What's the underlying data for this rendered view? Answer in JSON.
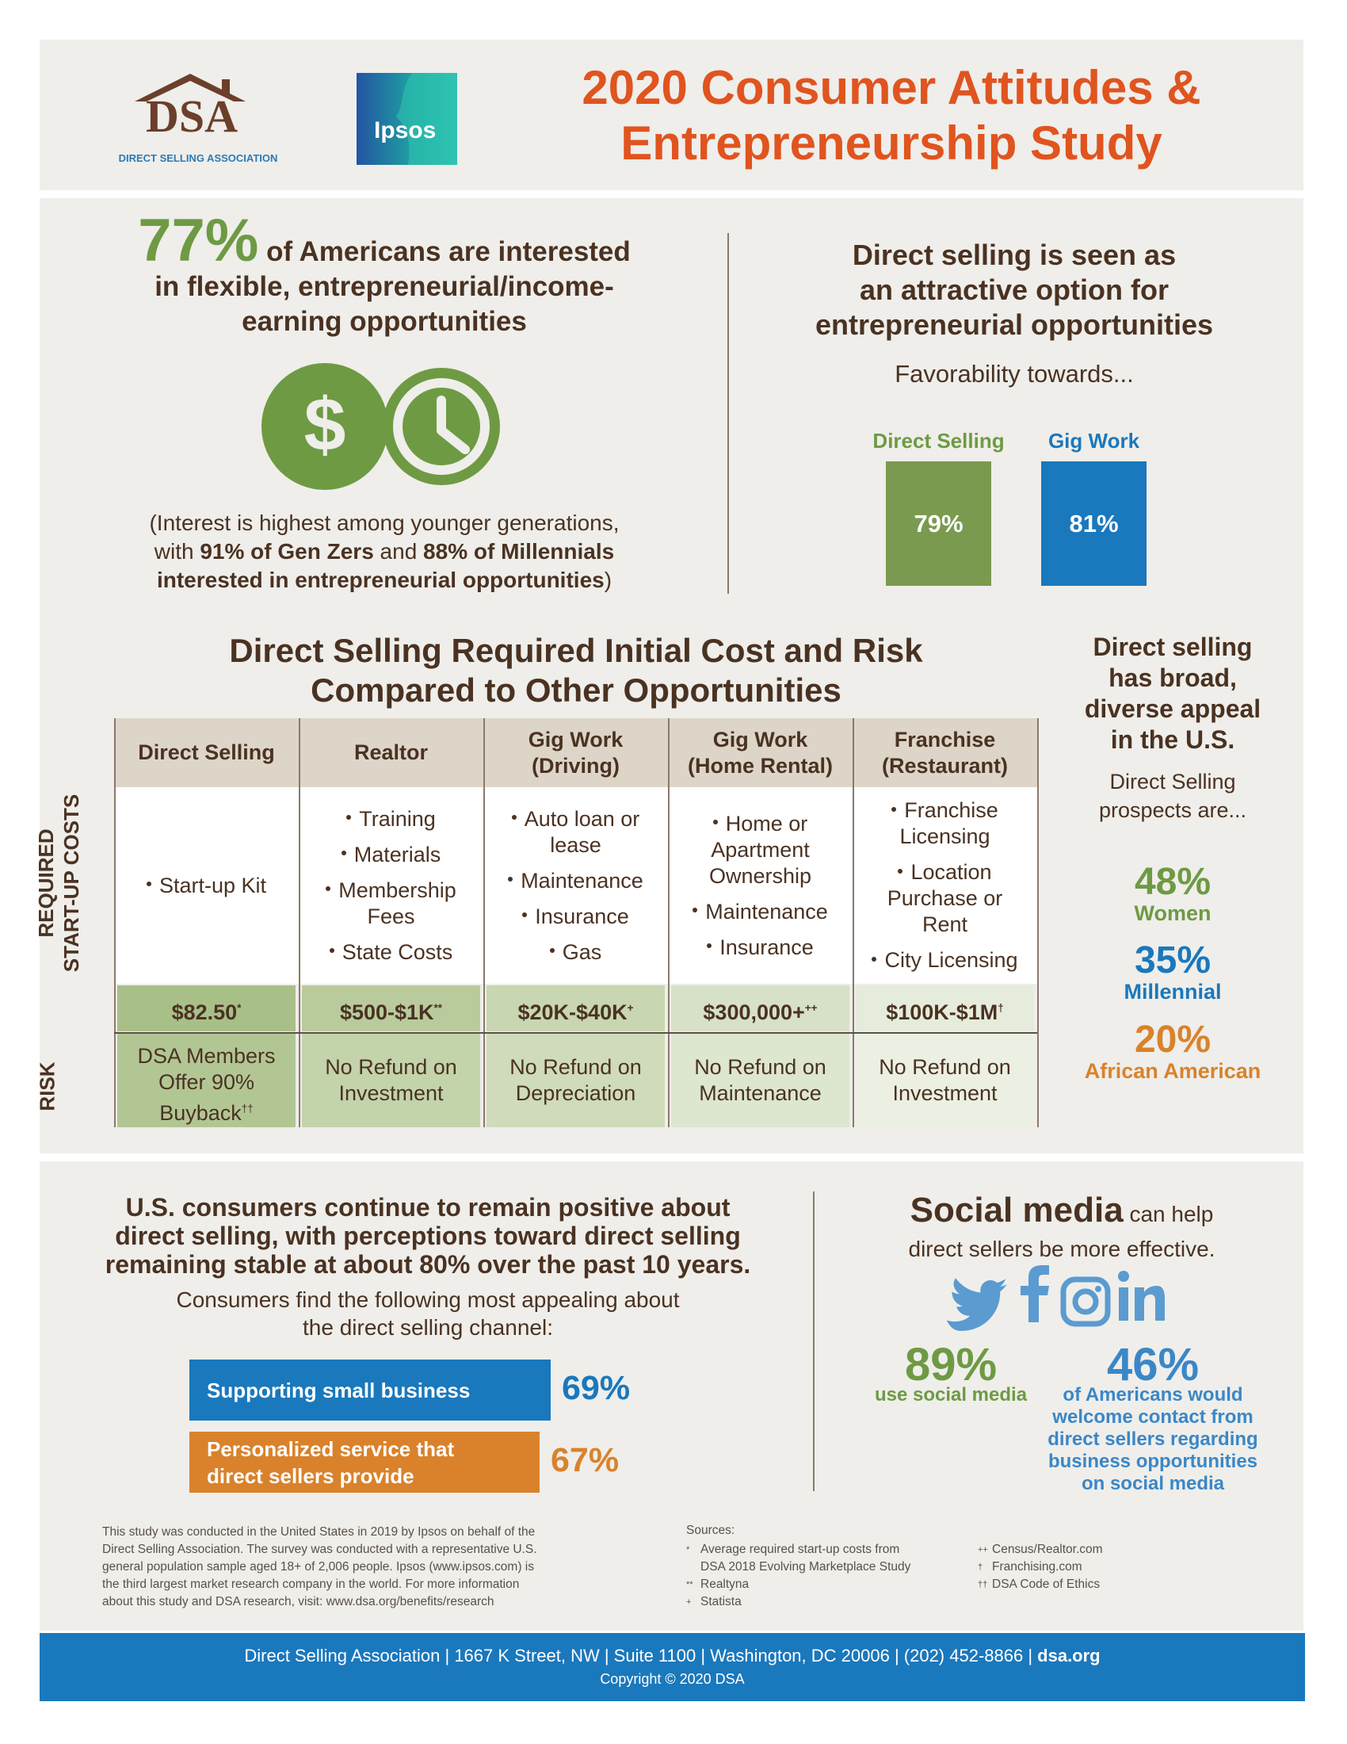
{
  "header": {
    "dsa_logo": "DSA",
    "dsa_name": "DIRECT SELLING ASSOCIATION",
    "ipsos_logo": "Ipsos",
    "title_lines": [
      "2020 Consumer Attitudes &",
      "Entrepreneurship Study"
    ]
  },
  "interest": {
    "stat": "77%",
    "headline_lines": [
      "of Americans are interested",
      "in flexible, entrepreneurial/income-",
      "earning opportunities"
    ],
    "dollar_icon": "$",
    "note_lines": [
      [
        {
          "text": "(Interest is highest among younger generations,",
          "bold": false
        }
      ],
      [
        {
          "text": "with ",
          "bold": false
        },
        {
          "text": "91% of Gen Zers",
          "bold": true
        },
        {
          "text": " and ",
          "bold": false
        },
        {
          "text": "88% of Millennials",
          "bold": true
        }
      ],
      [
        {
          "text": "interested in entrepreneurial opportunities",
          "bold": true
        },
        {
          "text": ")",
          "bold": false
        }
      ]
    ]
  },
  "favorability": {
    "headline_lines": [
      "Direct selling is seen as",
      "an attractive option for",
      "entrepreneurial opportunities"
    ],
    "subhead": "Favorability towards...",
    "bars": [
      {
        "label": "Direct Selling",
        "value": "79%"
      },
      {
        "label": "Gig Work",
        "value": "81%"
      }
    ]
  },
  "cost_risk": {
    "title_lines": [
      "Direct Selling Required Initial Cost and Risk",
      "Compared to Other Opportunities"
    ],
    "row_labels": [
      [
        "REQUIRED",
        "START-UP COSTS"
      ],
      [
        "RISK"
      ]
    ],
    "columns": [
      {
        "header": [
          "Direct Selling"
        ],
        "costs": [
          "Start-up Kit"
        ],
        "amount": "$82.50",
        "amount_mark": "*",
        "risk": "DSA Members Offer 90% Buyback",
        "risk_mark": "††"
      },
      {
        "header": [
          "Realtor"
        ],
        "costs": [
          "Training",
          "Materials",
          "Membership Fees",
          "State Costs"
        ],
        "amount": "$500-$1K",
        "amount_mark": "**",
        "risk": "No Refund on Investment"
      },
      {
        "header": [
          "Gig Work",
          "(Driving)"
        ],
        "costs": [
          "Auto loan or lease",
          "Maintenance",
          "Insurance",
          "Gas"
        ],
        "amount": "$20K-$40K",
        "amount_mark": "+",
        "risk": "No Refund on Depreciation"
      },
      {
        "header": [
          "Gig Work",
          "(Home Rental)"
        ],
        "costs": [
          "Home or Apartment Ownership",
          "Maintenance",
          "Insurance"
        ],
        "amount": "$300,000+",
        "amount_mark": "++",
        "risk": "No Refund on Maintenance"
      },
      {
        "header": [
          "Franchise",
          "(Restaurant)"
        ],
        "costs": [
          "Franchise Licensing",
          "Location Purchase or Rent",
          "City Licensing"
        ],
        "amount": "$100K-$1M",
        "amount_mark": "†",
        "risk": "No Refund on Investment"
      }
    ]
  },
  "appeal": {
    "title_lines": [
      "Direct selling",
      "has broad,",
      "diverse appeal",
      "in the U.S."
    ],
    "subtitle_lines": [
      "Direct Selling",
      "prospects are..."
    ],
    "stats": [
      {
        "value": "48%",
        "label": "Women"
      },
      {
        "value": "35%",
        "label": "Millennial"
      },
      {
        "value": "20%",
        "label": "African American"
      }
    ]
  },
  "perceptions": {
    "headline_lines": [
      "U.S. consumers continue to remain positive about",
      "direct selling, with perceptions toward direct selling",
      "remaining stable at about 80% over the past 10 years."
    ],
    "subhead_lines": [
      "Consumers find the following most appealing about",
      "the direct selling channel:"
    ],
    "items": [
      {
        "label_lines": [
          "Supporting small business"
        ],
        "value": "69%"
      },
      {
        "label_lines": [
          "Personalized service that",
          "direct sellers provide"
        ],
        "value": "67%"
      }
    ]
  },
  "social": {
    "headline_bold": "Social media",
    "headline_rest": "can help",
    "headline_line2": "direct sellers be more effective.",
    "stats": [
      {
        "value": "89%",
        "label_lines": [
          "use social media"
        ]
      },
      {
        "value": "46%",
        "label_lines": [
          "of Americans would",
          "welcome contact from",
          "direct sellers regarding",
          "business opportunities",
          "on social media"
        ]
      }
    ]
  },
  "footer": {
    "methodology_lines": [
      "This study was conducted in the United States in 2019 by Ipsos on behalf of the",
      "Direct Selling Association. The survey was conducted with a representative U.S.",
      "general population sample aged 18+ of 2,006 people. Ipsos (www.ipsos.com) is",
      "the third largest market research company in the world. For more information",
      "about this study and DSA research, visit: www.dsa.org/benefits/research"
    ],
    "sources_title": "Sources:",
    "sources_left": [
      {
        "mark": "*",
        "lines": [
          "Average required start-up costs from",
          "DSA 2018 Evolving Marketplace Study"
        ]
      },
      {
        "mark": "**",
        "lines": [
          "Realtyna"
        ]
      },
      {
        "mark": "+",
        "lines": [
          "Statista"
        ]
      }
    ],
    "sources_right": [
      {
        "mark": "++",
        "lines": [
          "Census/Realtor.com"
        ]
      },
      {
        "mark": "†",
        "lines": [
          "Franchising.com"
        ]
      },
      {
        "mark": "††",
        "lines": [
          "DSA Code of Ethics"
        ]
      }
    ],
    "address": "Direct Selling Association | 1667 K Street, NW | Suite 1100 | Washington, DC 20006 | (202) 452-8866 | ",
    "site": "dsa.org",
    "copyright": "Copyright © 2020 DSA"
  }
}
